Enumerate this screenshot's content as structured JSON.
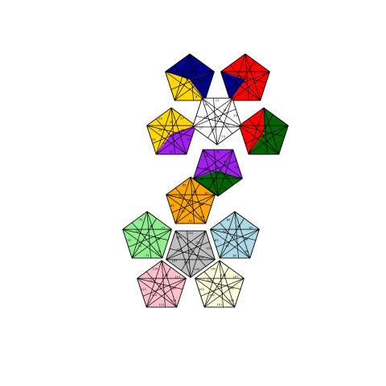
{
  "puzzle": {
    "type": "megaminx-net",
    "face_count": 12,
    "faces": [
      {
        "id": "navy",
        "color": "#00008B",
        "labels": [
          "",
          "",
          "",
          "",
          "",
          "",
          "",
          "",
          "",
          "1",
          "2",
          "3",
          "4",
          "5",
          "6",
          "7",
          "8",
          "9"
        ]
      },
      {
        "id": "red",
        "color": "#FF0000",
        "labels": [
          "",
          "",
          "",
          "",
          "",
          "",
          "",
          "",
          "",
          "1",
          "2",
          "3",
          "4",
          "5",
          "6",
          "7",
          "8",
          "9"
        ]
      },
      {
        "id": "yellow",
        "color": "#FFD700",
        "labels": [
          "21",
          "22",
          "23",
          "24",
          "25",
          "26",
          "27",
          "28",
          "29",
          "",
          ""
        ]
      },
      {
        "id": "white",
        "color": "#FFFFFF",
        "labels": [
          "11",
          "12",
          "13",
          "14",
          "15",
          "16",
          "17",
          "18",
          "19",
          "1"
        ]
      },
      {
        "id": "green-dark",
        "color": "#006400",
        "labels": [
          "",
          "",
          "",
          "",
          "",
          "",
          "",
          "",
          ""
        ]
      },
      {
        "id": "purple",
        "color": "#A020F0",
        "labels": [
          "41",
          "42",
          "43",
          "44",
          "45",
          "46",
          "47",
          "48",
          "49"
        ]
      },
      {
        "id": "orange",
        "color": "#FFA500",
        "labels": [
          "61",
          "62",
          "63",
          "64",
          "65",
          "66",
          "67",
          "68",
          "69",
          "6"
        ]
      },
      {
        "id": "light-green",
        "color": "#90EE90",
        "labels": [
          "71",
          "72",
          "73",
          "74",
          "75",
          "76",
          "77",
          "78",
          "79"
        ]
      },
      {
        "id": "light-blue",
        "color": "#ADD8E6",
        "labels": [
          "81",
          "82",
          "83",
          "84",
          "85",
          "86",
          "87",
          "88",
          "89",
          "8"
        ]
      },
      {
        "id": "gray",
        "color": "#BEBEBE",
        "labels": [
          "101",
          "102",
          "103",
          "104",
          "105",
          "106",
          "107",
          "108",
          "109",
          "10"
        ]
      },
      {
        "id": "pink",
        "color": "#FFC0CB",
        "labels": [
          "111",
          "112",
          "113",
          "114",
          "115",
          "116",
          "117",
          "118",
          "119",
          "11"
        ]
      },
      {
        "id": "cream",
        "color": "#FFFFE0",
        "labels": [
          "101",
          "102",
          "103",
          "104",
          "105",
          "106",
          "107",
          "108",
          "109",
          "10"
        ]
      }
    ]
  }
}
